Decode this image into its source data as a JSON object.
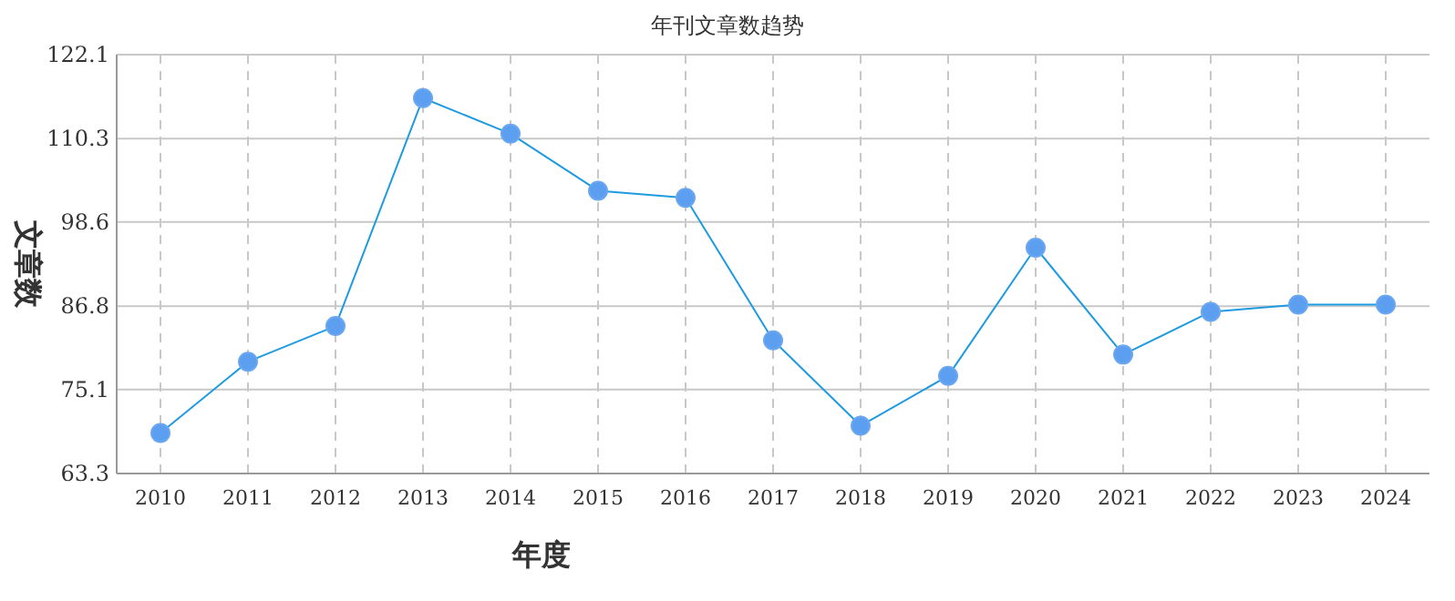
{
  "chart_data": {
    "type": "line",
    "title": "年刊文章数趋势",
    "xlabel": "年度",
    "ylabel": "文章数",
    "categories": [
      "2010",
      "2011",
      "2012",
      "2013",
      "2014",
      "2015",
      "2016",
      "2017",
      "2018",
      "2019",
      "2020",
      "2021",
      "2022",
      "2023",
      "2024"
    ],
    "series": [
      {
        "color": "#1e9be0",
        "values": [
          69,
          79,
          84,
          116,
          111,
          103,
          102,
          82,
          70,
          77,
          95,
          80,
          86,
          87,
          87
        ]
      }
    ],
    "ylim": [
      63.3,
      122.1
    ],
    "yticks": [
      63.3,
      75.1,
      86.8,
      98.6,
      110.3,
      122.1
    ],
    "grid": true,
    "marker": "circle",
    "line_style": "solid"
  }
}
